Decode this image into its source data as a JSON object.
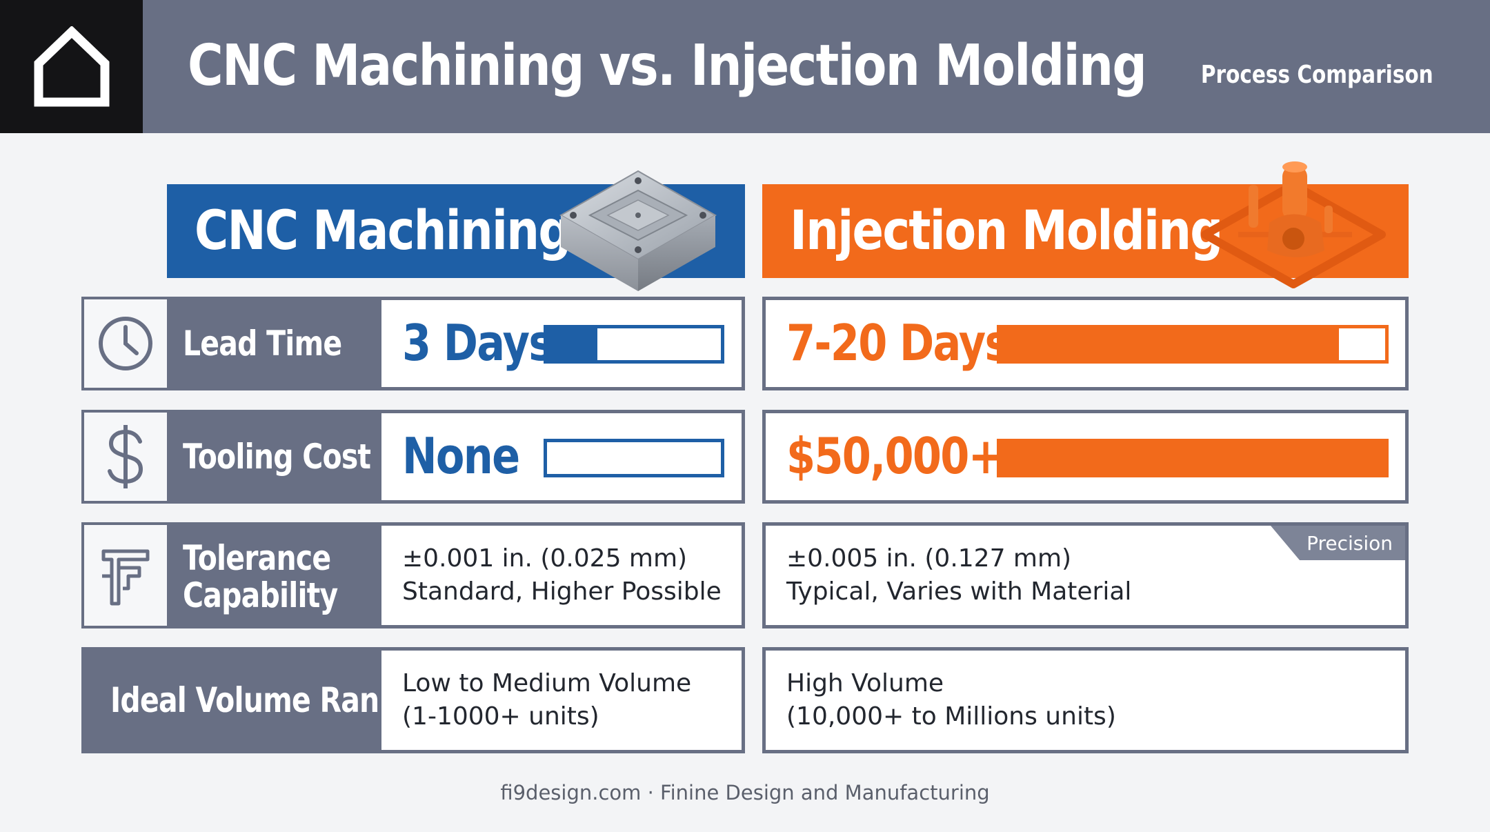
{
  "header": {
    "title": "CNC Machining vs. Injection Molding",
    "subtitle": "Process Comparison",
    "logo_icon": "house-outline-icon"
  },
  "columns": {
    "cnc": {
      "title": "CNC Machining",
      "color": "#1e5fa6",
      "image": "machined-aluminum-block"
    },
    "injection": {
      "title": "Injection Molding",
      "color": "#f26a1b",
      "image": "molded-plastic-part-on-sprue"
    }
  },
  "rows": {
    "lead_time": {
      "label": "Lead Time",
      "icon": "clock-icon",
      "cnc": {
        "value": "3 Days",
        "bar_fill_fraction": 0.29
      },
      "injection": {
        "value": "7-20 Days",
        "bar_fill_fraction": 0.88
      }
    },
    "tooling_cost": {
      "label": "Tooling Cost",
      "icon": "dollar-icon",
      "cnc": {
        "value": "None",
        "bar_fill_fraction": 0.0
      },
      "injection": {
        "value": "$50,000+",
        "bar_fill_fraction": 1.0
      }
    },
    "tolerance": {
      "label_line1": "Tolerance",
      "label_line2": "Capability",
      "icon": "caliper-icon",
      "cnc": {
        "line1": "±0.001 in. (0.025 mm)",
        "line2": "Standard, Higher Possible"
      },
      "injection": {
        "line1": "±0.005 in. (0.127 mm)",
        "line2": "Typical, Varies with Material",
        "tag": "Precision"
      }
    },
    "volume": {
      "label": "Ideal Volume Range",
      "cnc": {
        "line1": "Low to Medium Volume",
        "line2": "(1-1000+ units)"
      },
      "injection": {
        "line1": "High Volume",
        "line2": "(10,000+ to Millions units)"
      }
    }
  },
  "footer": {
    "text": "fi9design.com · Finine Design and Manufacturing"
  }
}
